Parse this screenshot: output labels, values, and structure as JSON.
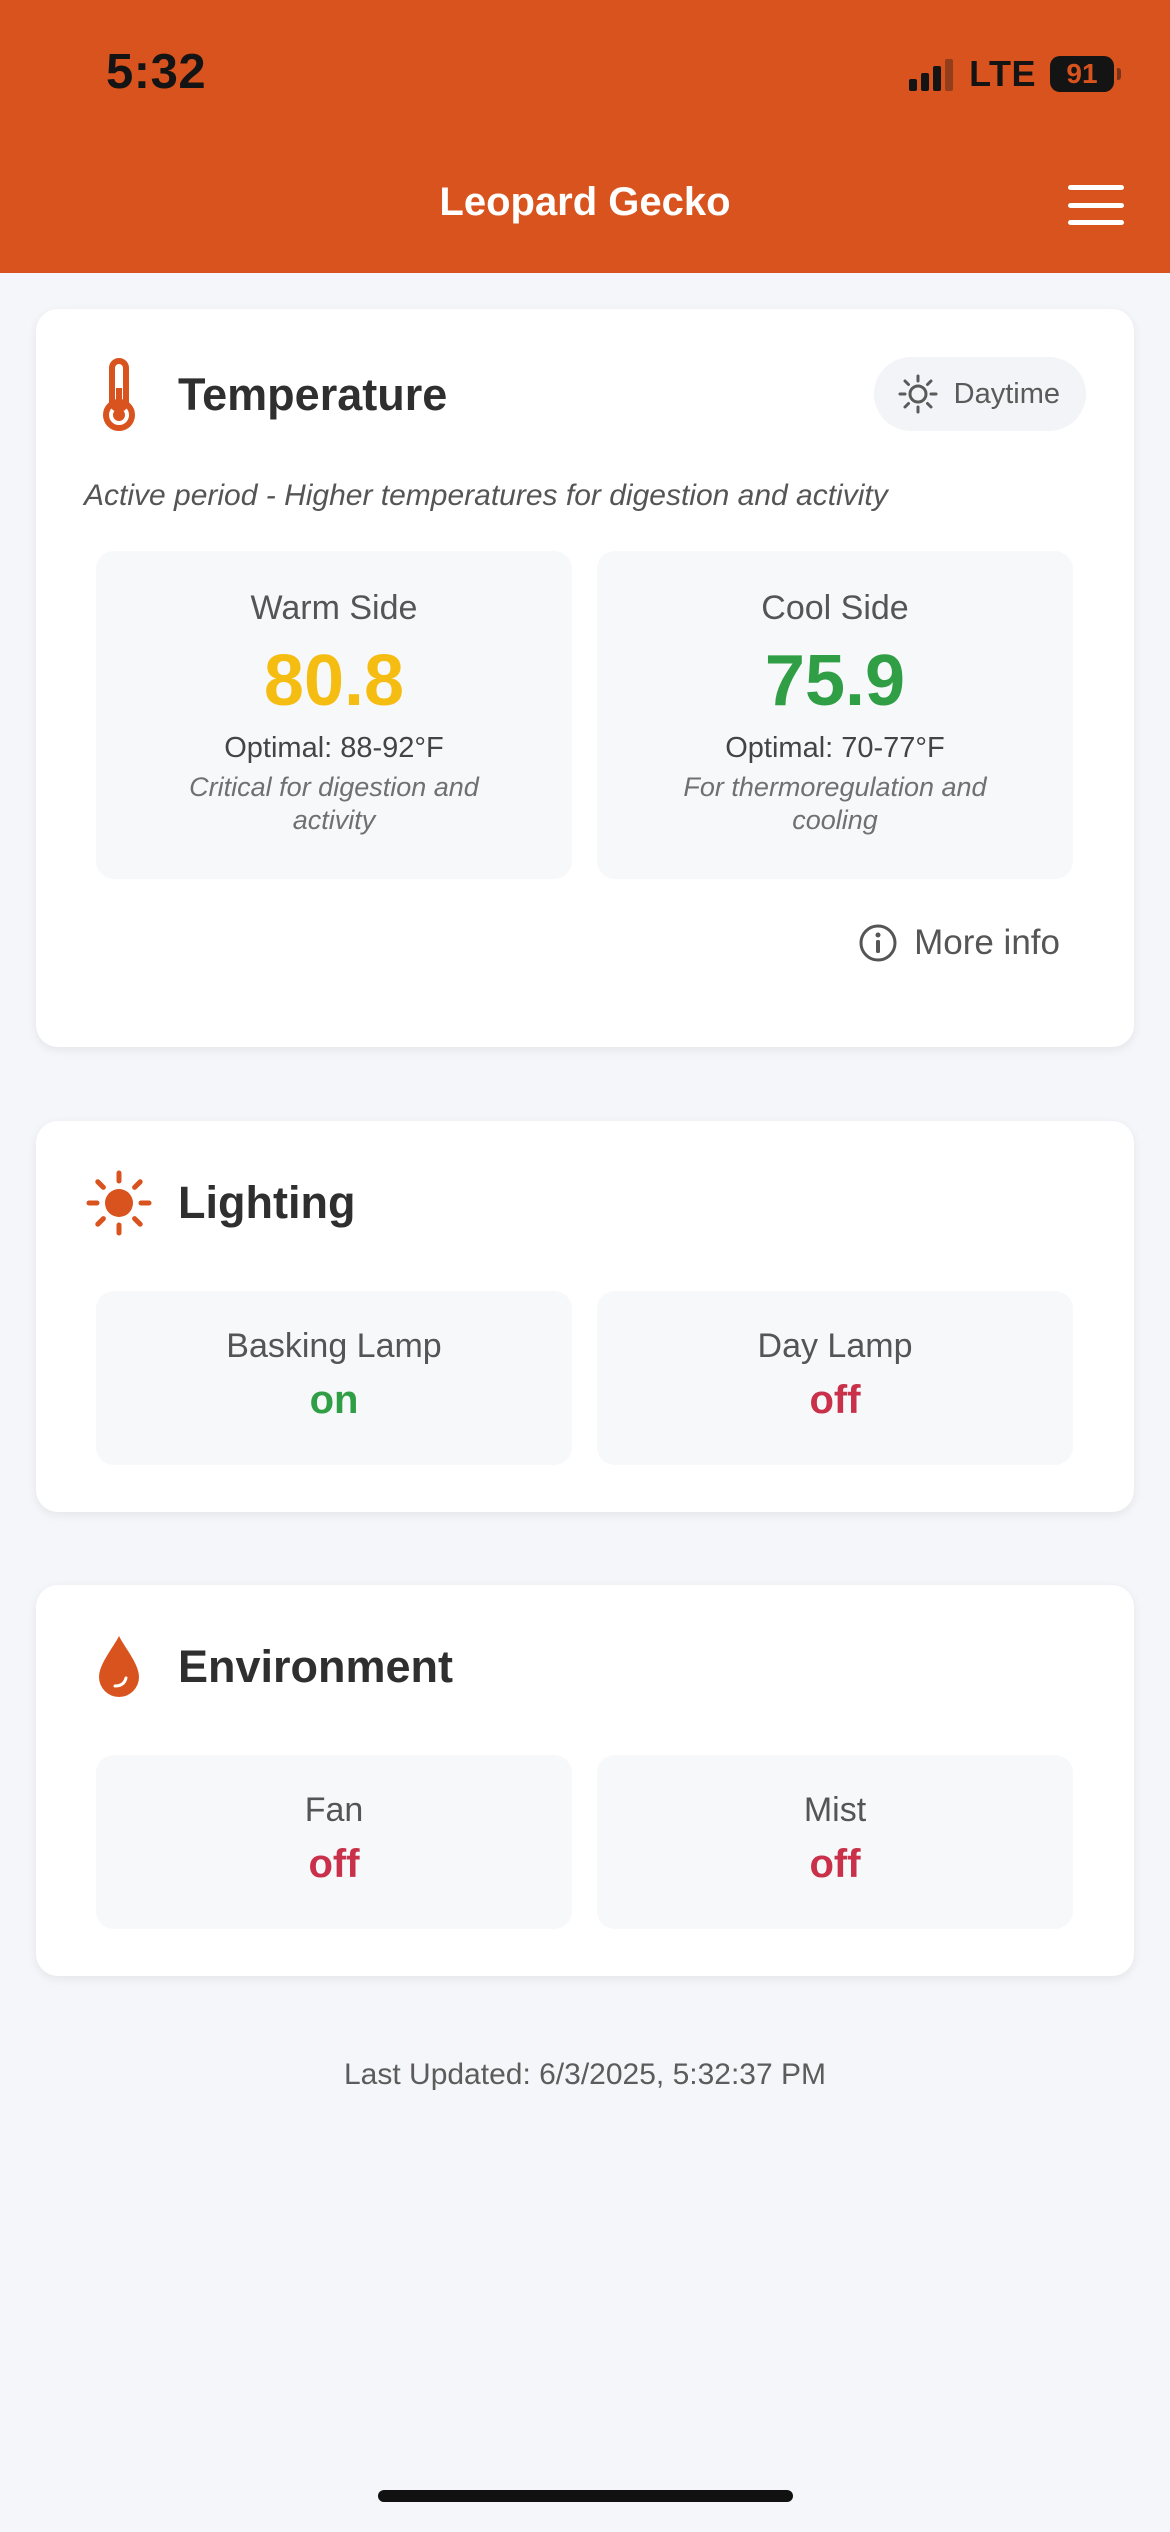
{
  "status_bar": {
    "time": "5:32",
    "network": "LTE",
    "battery": "91"
  },
  "header": {
    "title": "Leopard Gecko",
    "menu_icon": "hamburger-menu-icon"
  },
  "temperature": {
    "title": "Temperature",
    "icon": "thermometer-icon",
    "period_label": "Daytime",
    "period_icon": "sun-outline-icon",
    "description": "Active period - Higher temperatures for digestion and activity",
    "warm": {
      "label": "Warm Side",
      "value": "80.8",
      "optimal": "Optimal: 88-92°F",
      "note": "Critical for digestion and activity",
      "color": "#f5bd12"
    },
    "cool": {
      "label": "Cool Side",
      "value": "75.9",
      "optimal": "Optimal: 70-77°F",
      "note": "For thermoregulation and cooling",
      "color": "#2f9e44"
    },
    "more_info_label": "More info"
  },
  "lighting": {
    "title": "Lighting",
    "icon": "sun-icon",
    "basking": {
      "label": "Basking Lamp",
      "state": "on"
    },
    "day": {
      "label": "Day Lamp",
      "state": "off"
    }
  },
  "environment": {
    "title": "Environment",
    "icon": "water-drop-icon",
    "fan": {
      "label": "Fan",
      "state": "off"
    },
    "mist": {
      "label": "Mist",
      "state": "off"
    }
  },
  "footer": {
    "last_updated": "Last Updated: 6/3/2025, 5:32:37 PM"
  },
  "colors": {
    "accent": "#d9531e",
    "on": "#2f9e44",
    "off": "#c9304a",
    "background": "#f5f6fa"
  }
}
